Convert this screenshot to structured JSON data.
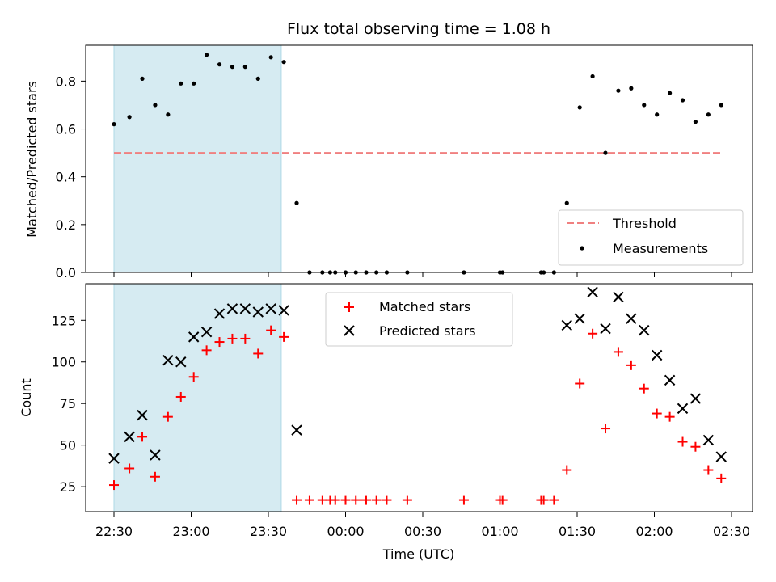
{
  "chart_data": [
    {
      "type": "scatter",
      "title": "Flux total observing time = 1.08 h",
      "ylabel": "Matched/Predicted stars",
      "xlabel": "",
      "ylim": [
        0,
        0.95
      ],
      "yticks": [
        "0.0",
        "0.2",
        "0.4",
        "0.6",
        "0.8"
      ],
      "grid": false,
      "legend_position": "lower-right",
      "shaded_interval": {
        "x0": "22:30",
        "x1": "23:35",
        "color": "#add8e6"
      },
      "series": [
        {
          "name": "Threshold",
          "kind": "dashed-line",
          "color": "#f08080",
          "x": [
            "22:30",
            "02:26"
          ],
          "values": [
            0.5,
            0.5
          ]
        },
        {
          "name": "Measurements",
          "kind": "dots",
          "color": "#000000",
          "x": [
            "22:30",
            "22:36",
            "22:41",
            "22:46",
            "22:51",
            "22:56",
            "23:01",
            "23:06",
            "23:11",
            "23:16",
            "23:21",
            "23:26",
            "23:31",
            "23:36",
            "23:41",
            "23:46",
            "23:51",
            "23:54",
            "23:56",
            "00:00",
            "00:04",
            "00:08",
            "00:12",
            "00:16",
            "00:24",
            "00:46",
            "01:00",
            "01:01",
            "01:16",
            "01:17",
            "01:21",
            "01:26",
            "01:31",
            "01:36",
            "01:41",
            "01:46",
            "01:51",
            "01:56",
            "02:01",
            "02:06",
            "02:11",
            "02:16",
            "02:21",
            "02:26"
          ],
          "values": [
            0.62,
            0.65,
            0.81,
            0.7,
            0.66,
            0.79,
            0.79,
            0.91,
            0.87,
            0.86,
            0.86,
            0.81,
            0.9,
            0.88,
            0.29,
            0.0,
            0.0,
            0.0,
            0.0,
            0.0,
            0.0,
            0.0,
            0.0,
            0.0,
            0.0,
            0.0,
            0.0,
            0.0,
            0.0,
            0.0,
            0.0,
            0.29,
            0.69,
            0.82,
            0.5,
            0.76,
            0.77,
            0.7,
            0.66,
            0.75,
            0.72,
            0.63,
            0.66,
            0.7
          ]
        }
      ]
    },
    {
      "type": "scatter",
      "title": "",
      "ylabel": "Count",
      "xlabel": "Time (UTC)",
      "ylim": [
        10,
        147
      ],
      "yticks": [
        "25",
        "50",
        "75",
        "100",
        "125"
      ],
      "xticks": [
        "22:30",
        "23:00",
        "23:30",
        "00:00",
        "00:30",
        "01:00",
        "01:30",
        "02:00",
        "02:30"
      ],
      "grid": false,
      "legend_position": "top-center",
      "shaded_interval": {
        "x0": "22:30",
        "x1": "23:35",
        "color": "#add8e6"
      },
      "series": [
        {
          "name": "Matched stars",
          "kind": "plus",
          "color": "#ff0000",
          "x": [
            "22:30",
            "22:36",
            "22:41",
            "22:46",
            "22:51",
            "22:56",
            "23:01",
            "23:06",
            "23:11",
            "23:16",
            "23:21",
            "23:26",
            "23:31",
            "23:36",
            "23:41",
            "23:46",
            "23:51",
            "23:54",
            "23:56",
            "00:00",
            "00:04",
            "00:08",
            "00:12",
            "00:16",
            "00:24",
            "00:46",
            "01:00",
            "01:01",
            "01:16",
            "01:17",
            "01:21",
            "01:26",
            "01:31",
            "01:36",
            "01:41",
            "01:46",
            "01:51",
            "01:56",
            "02:01",
            "02:06",
            "02:11",
            "02:16",
            "02:21",
            "02:26"
          ],
          "values": [
            26,
            36,
            55,
            31,
            67,
            79,
            91,
            107,
            112,
            114,
            114,
            105,
            119,
            115,
            17,
            17,
            17,
            17,
            17,
            17,
            17,
            17,
            17,
            17,
            17,
            17,
            17,
            17,
            17,
            17,
            17,
            35,
            87,
            117,
            60,
            106,
            98,
            84,
            69,
            67,
            52,
            49,
            35,
            30
          ]
        },
        {
          "name": "Predicted stars",
          "kind": "x",
          "color": "#000000",
          "x": [
            "22:30",
            "22:36",
            "22:41",
            "22:46",
            "22:51",
            "22:56",
            "23:01",
            "23:06",
            "23:11",
            "23:16",
            "23:21",
            "23:26",
            "23:31",
            "23:36",
            "23:41",
            "01:26",
            "01:31",
            "01:36",
            "01:41",
            "01:46",
            "01:51",
            "01:56",
            "02:01",
            "02:06",
            "02:11",
            "02:16",
            "02:21",
            "02:26"
          ],
          "values": [
            42,
            55,
            68,
            44,
            101,
            100,
            115,
            118,
            129,
            132,
            132,
            130,
            132,
            131,
            59,
            122,
            126,
            142,
            120,
            139,
            126,
            119,
            104,
            89,
            72,
            78,
            53,
            43
          ]
        }
      ]
    }
  ]
}
